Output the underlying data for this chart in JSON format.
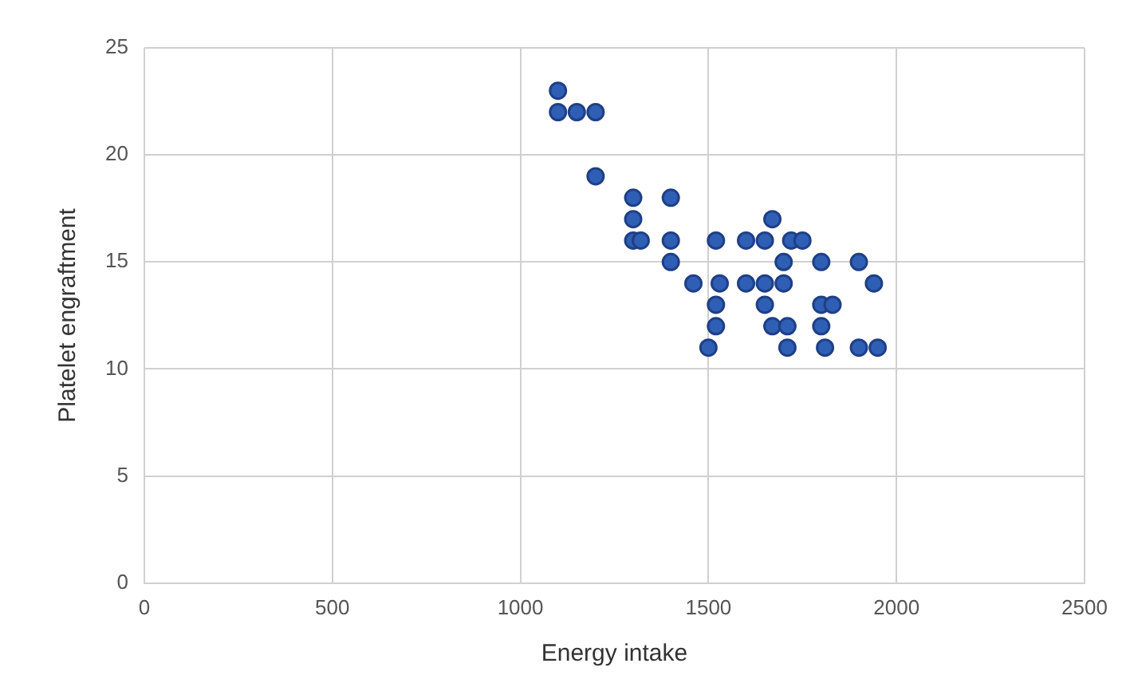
{
  "chart_data": {
    "type": "scatter",
    "xlabel": "Energy intake",
    "ylabel": "Platelet engraftment",
    "x": [
      1100,
      1100,
      1150,
      1200,
      1200,
      1300,
      1400,
      1300,
      1670,
      1300,
      1320,
      1400,
      1520,
      1600,
      1650,
      1720,
      1750,
      1400,
      1700,
      1800,
      1900,
      1460,
      1530,
      1600,
      1650,
      1700,
      1940,
      1520,
      1650,
      1800,
      1830,
      1520,
      1670,
      1710,
      1800,
      1500,
      1710,
      1810,
      1900,
      1950
    ],
    "values": [
      23,
      22,
      22,
      22,
      19,
      18,
      18,
      17,
      17,
      16,
      16,
      16,
      16,
      16,
      16,
      16,
      16,
      15,
      15,
      15,
      15,
      14,
      14,
      14,
      14,
      14,
      14,
      13,
      13,
      13,
      13,
      12,
      12,
      12,
      12,
      11,
      11,
      11,
      11,
      11
    ],
    "color": "#2e5fb4",
    "marker": "circle",
    "xlim": [
      0,
      2500
    ],
    "xticks": [
      0,
      500,
      1000,
      1500,
      2000,
      2500
    ],
    "ylim": [
      0,
      25
    ],
    "yticks": [
      0,
      5,
      10,
      15,
      20,
      25
    ],
    "grid": true,
    "legend": false
  }
}
